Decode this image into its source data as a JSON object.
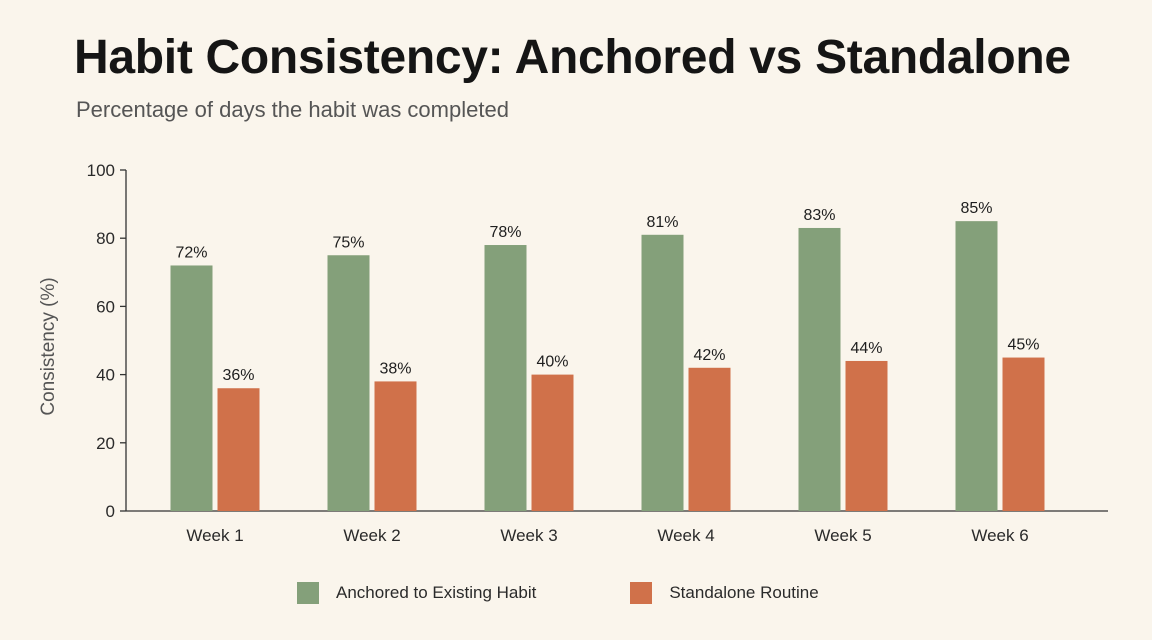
{
  "colors": {
    "background": "#faf5ec",
    "anchored": "#84a07a",
    "standalone": "#d0714a",
    "axis": "#333333"
  },
  "chart_data": {
    "type": "bar",
    "title": "Habit Consistency: Anchored vs Standalone",
    "subtitle": "Percentage of days the habit was completed",
    "xlabel": "",
    "ylabel": "Consistency (%)",
    "ylim": [
      0,
      100
    ],
    "yticks": [
      0,
      20,
      40,
      60,
      80,
      100
    ],
    "categories": [
      "Week 1",
      "Week 2",
      "Week 3",
      "Week 4",
      "Week 5",
      "Week 6"
    ],
    "series": [
      {
        "name": "Anchored to Existing Habit",
        "color": "#84a07a",
        "values": [
          72,
          75,
          78,
          81,
          83,
          85
        ],
        "labels": [
          "72%",
          "75%",
          "78%",
          "81%",
          "83%",
          "85%"
        ]
      },
      {
        "name": "Standalone Routine",
        "color": "#d0714a",
        "values": [
          36,
          38,
          40,
          42,
          44,
          45
        ],
        "labels": [
          "36%",
          "38%",
          "40%",
          "42%",
          "44%",
          "45%"
        ]
      }
    ],
    "grid": false,
    "legend_position": "bottom-center"
  }
}
